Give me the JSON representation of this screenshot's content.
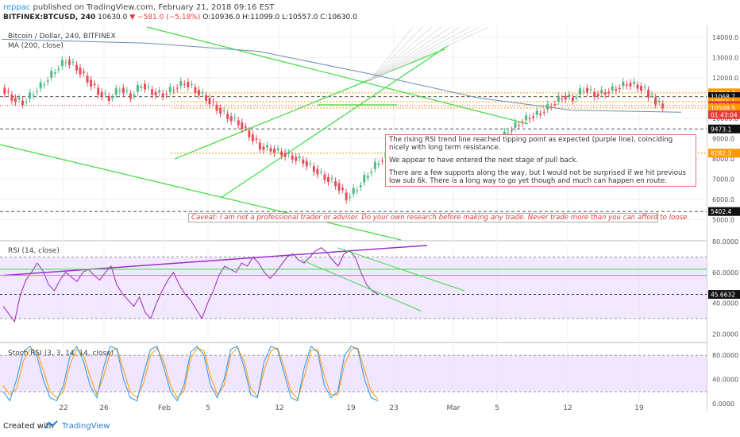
{
  "header": {
    "user": "reppac",
    "published": " published on TradingView.com, February 21, 2018 09:16 EST",
    "symbol": "BITFINEX:BTCUSD, 240",
    "last": "10630.0",
    "change": "▼ −581.0 (−5.18%)",
    "ohlc": "O:10936.0 H:11099.0 L:10557.0 C:10630.0"
  },
  "main_panel": {
    "title": "Bitcoin / Dollar, 240, BITFINEX",
    "ma_label": "MA (200, close)"
  },
  "rsi_panel": {
    "label": "RSI (14, close)"
  },
  "stoch_panel": {
    "label": "Stoch RSI (3, 3, 14, 14, close)"
  },
  "note": {
    "p1": "The rising RSI trend line reached tipping point as expected (purple line), coinciding nicely with long term resistance.",
    "p2": "We appear to have entered the next stage of pull back.",
    "p3": "There are a few supports along the way, but I would not be surprised if we hit previous low sub 6k. There is a long way to go yet though and much can happen en route."
  },
  "caveat": "Caveat: I am not a professional trader or adviser. Do your own research before making any trade. Never trade more than you can afford to loose.",
  "footer": {
    "made": "Created with",
    "brand": "TradingView"
  },
  "colors": {
    "trend": "#3ddc3d",
    "rsi_line": "#9c27b0",
    "rsi_trend": "#9932cc",
    "ma": "#6a8db5",
    "up": "#53b987",
    "down": "#eb4d5c",
    "band": "#e8d6ff"
  },
  "chart_data": [
    {
      "type": "candlestick",
      "title": "Bitcoin / Dollar, 240, BITFINEX",
      "ylim": [
        4000,
        14500
      ],
      "y_ticks": [
        5000,
        6000,
        7000,
        8000,
        9000,
        10000,
        11000,
        12000,
        13000,
        14000
      ],
      "y_tick_labels": [
        "5000.0",
        "6000.0",
        "7000.0",
        "8000.0",
        "9000.0",
        "10000.0",
        "11000.0",
        "12000.0",
        "13000.0",
        "14000.0"
      ],
      "x_tick_labels": [
        "22",
        "26",
        "Feb",
        "5",
        "12",
        "19",
        "23",
        "Mar",
        "5",
        "12",
        "19"
      ],
      "price_path": [
        [
          0,
          11500
        ],
        [
          3,
          11000
        ],
        [
          6,
          10800
        ],
        [
          9,
          11300
        ],
        [
          12,
          11800
        ],
        [
          15,
          12400
        ],
        [
          18,
          12900
        ],
        [
          21,
          12500
        ],
        [
          24,
          11900
        ],
        [
          27,
          11300
        ],
        [
          30,
          11000
        ],
        [
          33,
          11500
        ],
        [
          36,
          11100
        ],
        [
          39,
          11700
        ],
        [
          42,
          11300
        ],
        [
          45,
          11200
        ],
        [
          48,
          11500
        ],
        [
          51,
          11800
        ],
        [
          54,
          11400
        ],
        [
          57,
          11000
        ],
        [
          60,
          10500
        ],
        [
          63,
          10100
        ],
        [
          66,
          9800
        ],
        [
          69,
          9200
        ],
        [
          72,
          8600
        ],
        [
          75,
          8500
        ],
        [
          78,
          8300
        ],
        [
          81,
          8100
        ],
        [
          84,
          7900
        ],
        [
          87,
          7500
        ],
        [
          90,
          7100
        ],
        [
          93,
          6800
        ],
        [
          96,
          6100
        ],
        [
          99,
          6600
        ],
        [
          102,
          7300
        ],
        [
          105,
          7900
        ],
        [
          108,
          8300
        ],
        [
          111,
          8200
        ],
        [
          114,
          8600
        ],
        [
          117,
          8500
        ],
        [
          120,
          8700
        ],
        [
          123,
          8300
        ],
        [
          126,
          8500
        ],
        [
          129,
          8800
        ],
        [
          132,
          8600
        ],
        [
          135,
          8900
        ],
        [
          138,
          8800
        ],
        [
          141,
          9400
        ],
        [
          144,
          9800
        ],
        [
          147,
          10100
        ],
        [
          150,
          10300
        ],
        [
          153,
          10700
        ],
        [
          156,
          11100
        ],
        [
          159,
          11000
        ],
        [
          162,
          11500
        ],
        [
          165,
          11200
        ],
        [
          168,
          11300
        ],
        [
          171,
          11500
        ],
        [
          174,
          11750
        ],
        [
          177,
          11600
        ],
        [
          180,
          11300
        ],
        [
          182,
          10900
        ],
        [
          184,
          10630
        ]
      ],
      "ma200": [
        [
          0,
          13900
        ],
        [
          40,
          13700
        ],
        [
          70,
          13300
        ],
        [
          100,
          12200
        ],
        [
          130,
          11000
        ],
        [
          155,
          10400
        ],
        [
          185,
          10300
        ]
      ],
      "levels": [
        {
          "value": 11254.4,
          "label": "11254.4",
          "style": "orange-dotted"
        },
        {
          "value": 11068.7,
          "label": "11068.7",
          "style": "black-dashed"
        },
        {
          "value": 10815.1,
          "label": "10815.1",
          "style": "orange-dotted"
        },
        {
          "value": 10630.0,
          "label": "10630.0",
          "style": "last-price"
        },
        {
          "value": 10508.5,
          "label": "10508.5",
          "style": "orange-dotted"
        },
        {
          "value": 9473.1,
          "label": "9473.1",
          "style": "black-dashed"
        },
        {
          "value": 8282.3,
          "label": "8282.3",
          "style": "orange-dotted"
        },
        {
          "value": 5402.4,
          "label": "5402.4",
          "style": "black-dashed"
        }
      ],
      "timer_label": "01:43:04"
    },
    {
      "type": "line",
      "title": "RSI (14, close)",
      "ylim": [
        15,
        80
      ],
      "y_ticks": [
        20,
        40,
        60,
        80
      ],
      "y_tick_labels": [
        "20.0000",
        "40.0000",
        "60.0000",
        "80.0000"
      ],
      "band": [
        30,
        70
      ],
      "last_value": 45.6632,
      "last_label": "45.6632",
      "values": [
        38,
        33,
        28,
        45,
        55,
        60,
        66,
        61,
        52,
        48,
        55,
        60,
        57,
        54,
        60,
        62,
        58,
        55,
        60,
        64,
        52,
        46,
        42,
        38,
        44,
        34,
        30,
        40,
        48,
        55,
        60,
        52,
        46,
        42,
        36,
        30,
        40,
        48,
        58,
        64,
        62,
        60,
        66,
        64,
        70,
        66,
        60,
        56,
        60,
        65,
        70,
        72,
        68,
        66,
        70,
        74,
        76,
        73,
        68,
        64,
        72,
        74,
        70,
        60,
        52,
        48,
        45.66
      ]
    },
    {
      "type": "line",
      "title": "Stoch RSI (3, 3, 14, 14, close)",
      "ylim": [
        -5,
        100
      ],
      "y_ticks": [
        0,
        40,
        80
      ],
      "y_tick_labels": [
        "0.0000",
        "40.0000",
        "80.0000"
      ],
      "band": [
        20,
        80
      ],
      "k": [
        20,
        5,
        40,
        85,
        95,
        80,
        40,
        10,
        5,
        30,
        80,
        95,
        70,
        30,
        10,
        60,
        95,
        90,
        40,
        10,
        5,
        50,
        90,
        95,
        60,
        20,
        5,
        30,
        85,
        95,
        80,
        30,
        10,
        40,
        90,
        95,
        60,
        15,
        10,
        70,
        95,
        90,
        50,
        10,
        5,
        60,
        95,
        85,
        30,
        10,
        20,
        80,
        95,
        90,
        40,
        10,
        5
      ],
      "d": [
        30,
        15,
        25,
        70,
        90,
        88,
        55,
        20,
        10,
        20,
        65,
        90,
        80,
        45,
        15,
        45,
        85,
        92,
        55,
        20,
        10,
        35,
        80,
        92,
        70,
        30,
        10,
        20,
        75,
        92,
        88,
        45,
        15,
        30,
        80,
        93,
        70,
        25,
        12,
        55,
        88,
        92,
        60,
        20,
        8,
        45,
        88,
        90,
        45,
        15,
        15,
        65,
        90,
        92,
        55,
        20,
        8
      ]
    }
  ]
}
